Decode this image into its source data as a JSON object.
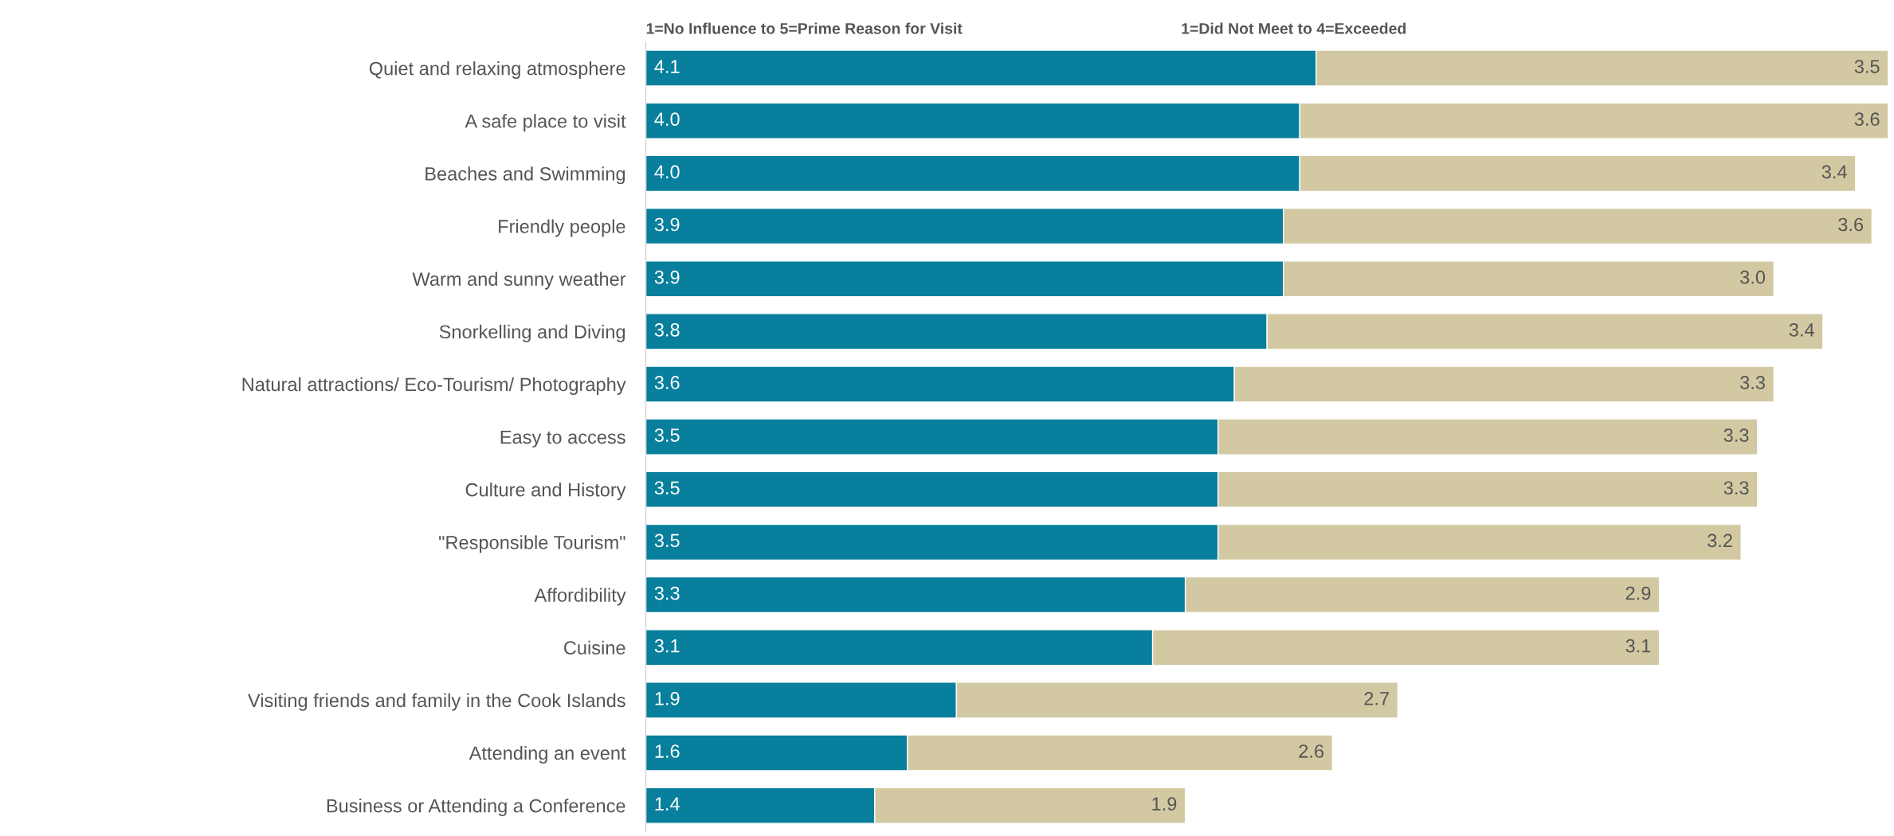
{
  "chart_data": {
    "type": "bar",
    "orientation": "horizontal",
    "stacked": true,
    "categories": [
      "Quiet and relaxing atmosphere",
      "A safe place to visit",
      "Beaches and Swimming",
      "Friendly people",
      "Warm and sunny weather",
      "Snorkelling and Diving",
      "Natural attractions/ Eco-Tourism/ Photography",
      "Easy to access",
      "Culture and History",
      "\"Responsible Tourism\"",
      "Affordibility",
      "Cuisine",
      "Visiting friends and family in the Cook Islands",
      "Attending an event",
      "Business or Attending a Conference"
    ],
    "series": [
      {
        "name": "1=No Influence to 5=Prime Reason for Visit",
        "color": "#087f9c",
        "values": [
          4.1,
          4.0,
          4.0,
          3.9,
          3.9,
          3.8,
          3.6,
          3.5,
          3.5,
          3.5,
          3.3,
          3.1,
          1.9,
          1.6,
          1.4
        ],
        "value_labels": [
          "4.1",
          "4.0",
          "4.0",
          "3.9",
          "3.9",
          "3.8",
          "3.6",
          "3.5",
          "3.5",
          "3.5",
          "3.3",
          "3.1",
          "1.9",
          "1.6",
          "1.4"
        ]
      },
      {
        "name": "1=Did Not Meet to 4=Exceeded",
        "color": "#d2c9a2",
        "values": [
          3.5,
          3.6,
          3.4,
          3.6,
          3.0,
          3.4,
          3.3,
          3.3,
          3.3,
          3.2,
          2.9,
          3.1,
          2.7,
          2.6,
          1.9
        ],
        "value_labels": [
          "3.5",
          "3.6",
          "3.4",
          "3.6",
          "3.0",
          "3.4",
          "3.3",
          "3.3",
          "3.3",
          "3.2",
          "2.9",
          "3.1",
          "2.7",
          "2.6",
          "1.9"
        ]
      }
    ],
    "legend": false
  }
}
